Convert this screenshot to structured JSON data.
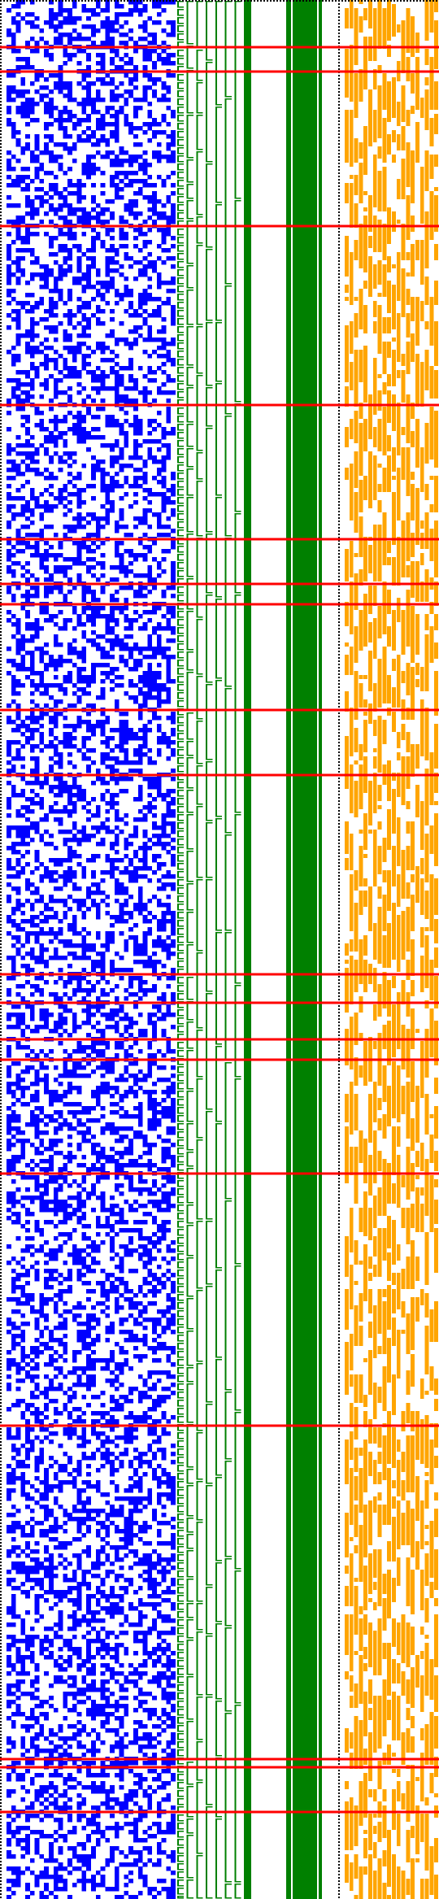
{
  "colors": {
    "background": "#ffffff",
    "left_matrix": "#0000ff",
    "middle_bars": "#008000",
    "right_matrix": "#ffa500",
    "highlight_rows": "#ff0000",
    "separator": "#000000"
  },
  "visualization": {
    "kind": "bit-matrix with tree/bar columns",
    "left_matrix_fill_density": 0.45,
    "right_matrix_fill_density": 0.5,
    "left_matrix_columns": 36,
    "right_matrix_columns": 20,
    "rows": 467
  },
  "highlight_rows": [
    11,
    17,
    55,
    99,
    132,
    143,
    148,
    174,
    190,
    239,
    246,
    255,
    260,
    288,
    350,
    432,
    434,
    445
  ]
}
